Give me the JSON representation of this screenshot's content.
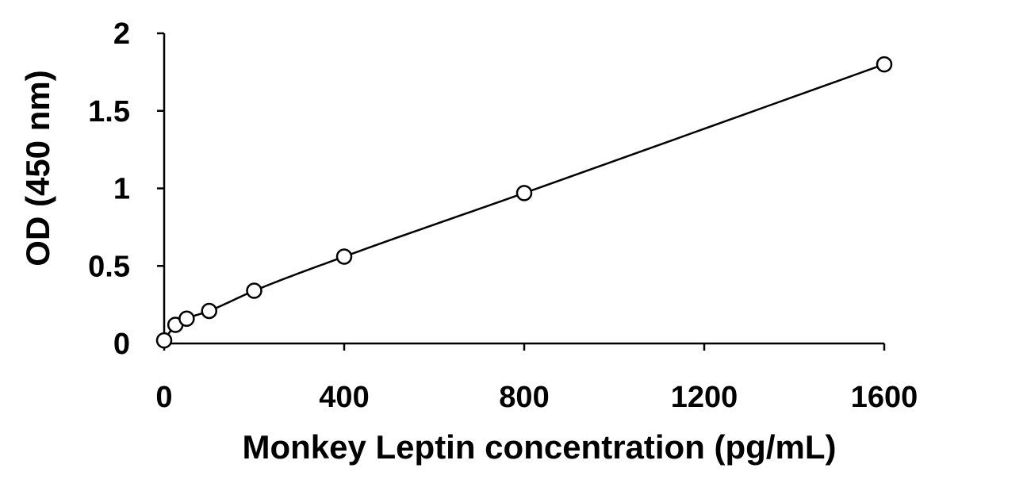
{
  "chart_data": {
    "type": "scatter",
    "xlabel": "Monkey Leptin concentration (pg/mL)",
    "ylabel": "OD (450 nm)",
    "xlim": [
      0,
      1600
    ],
    "ylim": [
      0,
      2
    ],
    "xticks": [
      0,
      400,
      800,
      1200,
      1600
    ],
    "yticks": [
      0,
      0.5,
      1,
      1.5,
      2
    ],
    "xtick_labels": [
      "0",
      "400",
      "800",
      "1200",
      "1600"
    ],
    "ytick_labels": [
      "0",
      "0.5",
      "1",
      "1.5",
      "2"
    ],
    "grid": false,
    "fit_line": true,
    "series": [
      {
        "x": [
          0,
          25,
          50,
          100,
          200,
          400,
          800,
          1600
        ],
        "y": [
          0.02,
          0.12,
          0.16,
          0.21,
          0.34,
          0.56,
          0.97,
          1.8
        ]
      }
    ],
    "colors": {
      "stroke": "#000000",
      "marker_fill": "#ffffff"
    }
  }
}
